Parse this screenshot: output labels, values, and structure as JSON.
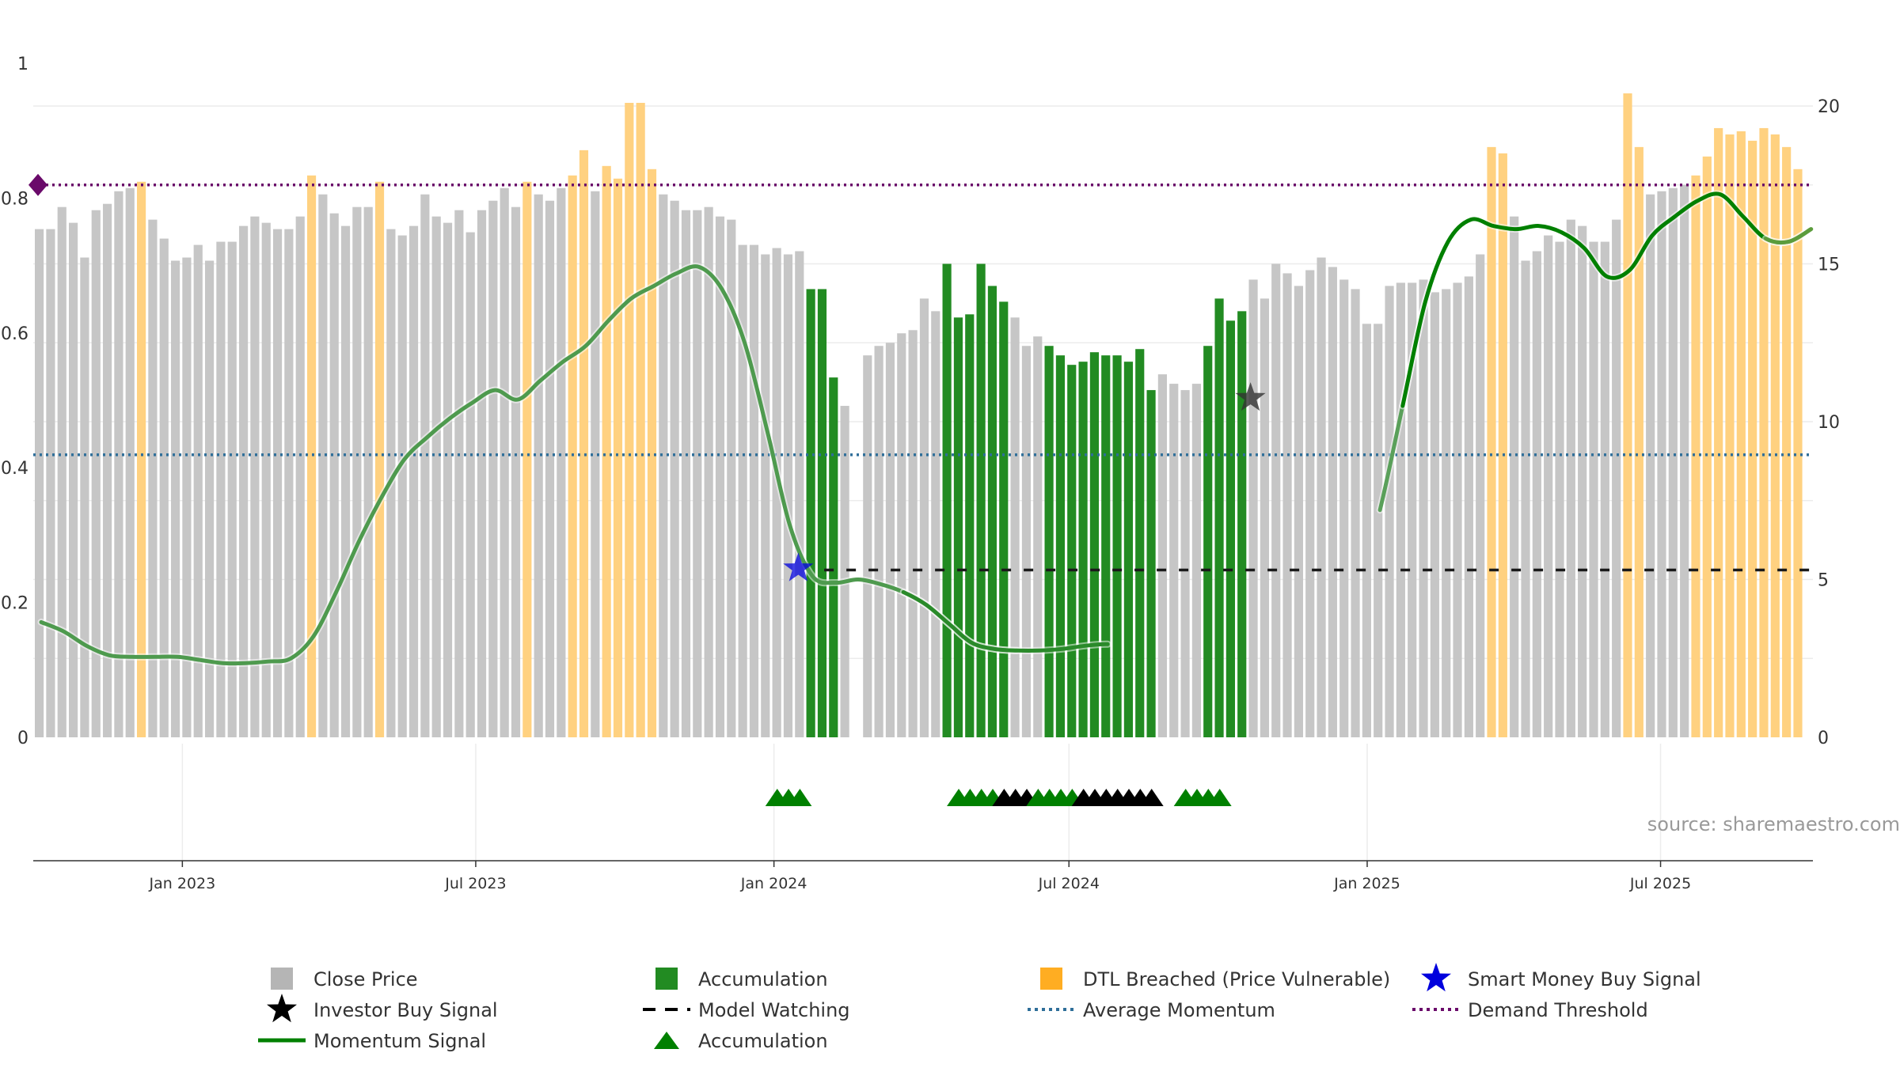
{
  "chart_data": {
    "type": "bar",
    "source": "source: sharemaestro.com",
    "left_axis": {
      "range": [
        0,
        1
      ],
      "ticks": [
        "0",
        "0.2",
        "0.4",
        "0.6",
        "0.8",
        "1"
      ]
    },
    "right_axis": {
      "range": [
        0,
        21.4
      ],
      "ticks": [
        "0",
        "5",
        "10",
        "15",
        "20"
      ]
    },
    "x_axis": {
      "range": [
        "2022-10-01",
        "2025-10-03"
      ],
      "ticks": [
        {
          "label": "Jan 2023",
          "date": "2023-01-01"
        },
        {
          "label": "Jul 2023",
          "date": "2023-07-01"
        },
        {
          "label": "Jan 2024",
          "date": "2024-01-01"
        },
        {
          "label": "Jul 2024",
          "date": "2024-07-01"
        },
        {
          "label": "Jan 2025",
          "date": "2025-01-01"
        },
        {
          "label": "Jul 2025",
          "date": "2025-07-01"
        }
      ]
    },
    "colors": {
      "close": "#c6c6c6",
      "accumulation": "#228b22",
      "dtl": "#ffd180",
      "momentum": "#008000",
      "watch": "#1a1a1a",
      "avg_momentum": "#2e6e99",
      "demand": "#6a0a6a",
      "smart_star": "#0000dd",
      "investor_star": "#333333"
    },
    "bar_start": "2022-10-01",
    "bar_step_days": 7,
    "bars": [
      [
        16.1,
        "c"
      ],
      [
        16.1,
        "c"
      ],
      [
        16.8,
        "c"
      ],
      [
        16.3,
        "c"
      ],
      [
        15.2,
        "c"
      ],
      [
        16.7,
        "c"
      ],
      [
        16.9,
        "c"
      ],
      [
        17.3,
        "c"
      ],
      [
        17.4,
        "c"
      ],
      [
        17.6,
        "d"
      ],
      [
        16.4,
        "c"
      ],
      [
        15.8,
        "c"
      ],
      [
        15.1,
        "c"
      ],
      [
        15.2,
        "c"
      ],
      [
        15.6,
        "c"
      ],
      [
        15.1,
        "c"
      ],
      [
        15.7,
        "c"
      ],
      [
        15.7,
        "c"
      ],
      [
        16.2,
        "c"
      ],
      [
        16.5,
        "c"
      ],
      [
        16.3,
        "c"
      ],
      [
        16.1,
        "c"
      ],
      [
        16.1,
        "c"
      ],
      [
        16.5,
        "c"
      ],
      [
        17.8,
        "d"
      ],
      [
        17.2,
        "c"
      ],
      [
        16.6,
        "c"
      ],
      [
        16.2,
        "c"
      ],
      [
        16.8,
        "c"
      ],
      [
        16.8,
        "c"
      ],
      [
        17.6,
        "d"
      ],
      [
        16.1,
        "c"
      ],
      [
        15.9,
        "c"
      ],
      [
        16.2,
        "c"
      ],
      [
        17.2,
        "c"
      ],
      [
        16.5,
        "c"
      ],
      [
        16.3,
        "c"
      ],
      [
        16.7,
        "c"
      ],
      [
        16.0,
        "c"
      ],
      [
        16.7,
        "c"
      ],
      [
        17.0,
        "c"
      ],
      [
        17.4,
        "c"
      ],
      [
        16.8,
        "c"
      ],
      [
        17.6,
        "d"
      ],
      [
        17.2,
        "c"
      ],
      [
        17.0,
        "c"
      ],
      [
        17.4,
        "c"
      ],
      [
        17.8,
        "d"
      ],
      [
        18.6,
        "d"
      ],
      [
        17.3,
        "c"
      ],
      [
        18.1,
        "d"
      ],
      [
        17.7,
        "d"
      ],
      [
        20.1,
        "d"
      ],
      [
        20.1,
        "d"
      ],
      [
        18.0,
        "d"
      ],
      [
        17.2,
        "c"
      ],
      [
        17.0,
        "c"
      ],
      [
        16.7,
        "c"
      ],
      [
        16.7,
        "c"
      ],
      [
        16.8,
        "c"
      ],
      [
        16.5,
        "c"
      ],
      [
        16.4,
        "c"
      ],
      [
        15.6,
        "c"
      ],
      [
        15.6,
        "c"
      ],
      [
        15.3,
        "c"
      ],
      [
        15.5,
        "c"
      ],
      [
        15.3,
        "c"
      ],
      [
        15.4,
        "c"
      ],
      [
        14.2,
        "a"
      ],
      [
        14.2,
        "a"
      ],
      [
        11.4,
        "a"
      ],
      [
        10.5,
        "c"
      ],
      [
        null,
        "c"
      ],
      [
        12.1,
        "c"
      ],
      [
        12.4,
        "c"
      ],
      [
        12.5,
        "c"
      ],
      [
        12.8,
        "c"
      ],
      [
        12.9,
        "c"
      ],
      [
        13.9,
        "c"
      ],
      [
        13.5,
        "c"
      ],
      [
        15.0,
        "a"
      ],
      [
        13.3,
        "a"
      ],
      [
        13.4,
        "a"
      ],
      [
        15.0,
        "a"
      ],
      [
        14.3,
        "a"
      ],
      [
        13.8,
        "a"
      ],
      [
        13.3,
        "c"
      ],
      [
        12.4,
        "c"
      ],
      [
        12.7,
        "c"
      ],
      [
        12.4,
        "a"
      ],
      [
        12.1,
        "a"
      ],
      [
        11.8,
        "a"
      ],
      [
        11.9,
        "a"
      ],
      [
        12.2,
        "a"
      ],
      [
        12.1,
        "a"
      ],
      [
        12.1,
        "a"
      ],
      [
        11.9,
        "a"
      ],
      [
        12.3,
        "a"
      ],
      [
        11.0,
        "a"
      ],
      [
        11.5,
        "c"
      ],
      [
        11.2,
        "c"
      ],
      [
        11.0,
        "c"
      ],
      [
        11.2,
        "c"
      ],
      [
        12.4,
        "a"
      ],
      [
        13.9,
        "a"
      ],
      [
        13.2,
        "a"
      ],
      [
        13.5,
        "a"
      ],
      [
        14.5,
        "c"
      ],
      [
        13.9,
        "c"
      ],
      [
        15.0,
        "c"
      ],
      [
        14.7,
        "c"
      ],
      [
        14.3,
        "c"
      ],
      [
        14.8,
        "c"
      ],
      [
        15.2,
        "c"
      ],
      [
        14.9,
        "c"
      ],
      [
        14.5,
        "c"
      ],
      [
        14.2,
        "c"
      ],
      [
        13.1,
        "c"
      ],
      [
        13.1,
        "c"
      ],
      [
        14.3,
        "c"
      ],
      [
        14.4,
        "c"
      ],
      [
        14.4,
        "c"
      ],
      [
        14.5,
        "c"
      ],
      [
        14.1,
        "c"
      ],
      [
        14.2,
        "c"
      ],
      [
        14.4,
        "c"
      ],
      [
        14.6,
        "c"
      ],
      [
        15.3,
        "c"
      ],
      [
        18.7,
        "d"
      ],
      [
        18.5,
        "d"
      ],
      [
        16.5,
        "c"
      ],
      [
        15.1,
        "c"
      ],
      [
        15.4,
        "c"
      ],
      [
        15.9,
        "c"
      ],
      [
        15.7,
        "c"
      ],
      [
        16.4,
        "c"
      ],
      [
        16.2,
        "c"
      ],
      [
        15.7,
        "c"
      ],
      [
        15.7,
        "c"
      ],
      [
        16.4,
        "c"
      ],
      [
        20.4,
        "d"
      ],
      [
        18.7,
        "d"
      ],
      [
        17.2,
        "c"
      ],
      [
        17.3,
        "c"
      ],
      [
        17.4,
        "c"
      ],
      [
        17.5,
        "c"
      ],
      [
        17.8,
        "d"
      ],
      [
        18.4,
        "d"
      ],
      [
        19.3,
        "d"
      ],
      [
        19.1,
        "d"
      ],
      [
        19.2,
        "d"
      ],
      [
        18.9,
        "d"
      ],
      [
        19.3,
        "d"
      ],
      [
        19.1,
        "d"
      ],
      [
        18.7,
        "d"
      ],
      [
        18.0,
        "d"
      ]
    ],
    "momentum_start": "2022-10-01",
    "momentum_step_days": 14,
    "momentum": [
      3.65,
      3.35,
      2.9,
      2.6,
      2.55,
      2.55,
      2.55,
      2.45,
      2.35,
      2.35,
      2.4,
      2.5,
      3.2,
      4.6,
      6.2,
      7.6,
      8.8,
      9.5,
      10.1,
      10.6,
      11.0,
      10.7,
      11.3,
      11.9,
      12.4,
      13.2,
      13.9,
      14.3,
      14.7,
      14.9,
      14.2,
      12.5,
      9.7,
      6.7,
      5.1,
      4.9,
      5.0,
      4.85,
      4.6,
      4.2,
      3.6,
      3.0,
      2.8,
      2.75,
      2.75,
      2.8,
      2.9,
      2.95,
      2.85,
      2.85,
      3.0,
      3.1,
      3.15,
      3.25,
      3.3,
      3.15,
      3.0,
      3.2,
      4.6,
      7.2,
      10.5,
      13.8,
      15.7,
      16.4,
      16.2,
      16.1,
      16.2,
      16.0,
      15.5,
      14.6,
      14.8,
      15.9,
      16.5,
      17.0,
      17.2,
      16.5,
      15.8,
      15.7,
      16.1,
      16.7,
      17.2,
      17.5,
      18.0,
      17.5,
      16.6,
      16.3
    ],
    "momentum_highlight": [
      [
        0,
        43,
        "#4e9a4e"
      ],
      [
        38,
        47,
        "#2a8a2a"
      ],
      [
        59,
        62,
        "#5aa05a"
      ],
      [
        60,
        78,
        "#008000"
      ],
      [
        76,
        86,
        "#5c9c3c"
      ]
    ],
    "watch": {
      "start": "2024-02-01",
      "end": "2025-10-01",
      "value": 5.3
    },
    "avg_momentum": 8.95,
    "demand_threshold": 17.5,
    "smart_money_star": {
      "date": "2024-01-16",
      "value": 5.35
    },
    "investor_star": {
      "date": "2024-10-21",
      "value": 10.75
    },
    "accumulation_markers": [
      {
        "date": "2024-01-03",
        "color": "green"
      },
      {
        "date": "2024-01-10",
        "color": "green"
      },
      {
        "date": "2024-01-17",
        "color": "green"
      },
      {
        "date": "2024-04-24",
        "color": "green"
      },
      {
        "date": "2024-05-01",
        "color": "green"
      },
      {
        "date": "2024-05-08",
        "color": "green"
      },
      {
        "date": "2024-05-15",
        "color": "green"
      },
      {
        "date": "2024-05-22",
        "color": "black"
      },
      {
        "date": "2024-05-29",
        "color": "black"
      },
      {
        "date": "2024-06-05",
        "color": "black"
      },
      {
        "date": "2024-06-12",
        "color": "green"
      },
      {
        "date": "2024-06-19",
        "color": "green"
      },
      {
        "date": "2024-06-26",
        "color": "green"
      },
      {
        "date": "2024-07-03",
        "color": "green"
      },
      {
        "date": "2024-07-10",
        "color": "black"
      },
      {
        "date": "2024-07-17",
        "color": "black"
      },
      {
        "date": "2024-07-24",
        "color": "black"
      },
      {
        "date": "2024-07-31",
        "color": "black"
      },
      {
        "date": "2024-08-07",
        "color": "black"
      },
      {
        "date": "2024-08-14",
        "color": "black"
      },
      {
        "date": "2024-08-21",
        "color": "black"
      },
      {
        "date": "2024-09-11",
        "color": "green"
      },
      {
        "date": "2024-09-18",
        "color": "green"
      },
      {
        "date": "2024-09-25",
        "color": "green"
      },
      {
        "date": "2024-10-02",
        "color": "green"
      }
    ],
    "legend": [
      {
        "label": "Close Price",
        "symbol": "square",
        "color": "#b5b5b5"
      },
      {
        "label": "Accumulation",
        "symbol": "square",
        "color": "#228b22"
      },
      {
        "label": "DTL Breached (Price Vulnerable)",
        "symbol": "square",
        "color": "#ffad22"
      },
      {
        "label": "Smart Money Buy Signal",
        "symbol": "star",
        "color": "#0000dd"
      },
      {
        "label": "Investor Buy Signal",
        "symbol": "star",
        "color": "#000000"
      },
      {
        "label": "Model Watching",
        "symbol": "dash",
        "color": "#000000"
      },
      {
        "label": "Average Momentum",
        "symbol": "dot",
        "color": "#2e6e99"
      },
      {
        "label": "Demand Threshold",
        "symbol": "dot",
        "color": "#6a0a6a"
      },
      {
        "label": "Momentum Signal",
        "symbol": "line",
        "color": "#008000"
      },
      {
        "label": "Accumulation",
        "symbol": "triangle",
        "color": "#008000"
      }
    ]
  }
}
